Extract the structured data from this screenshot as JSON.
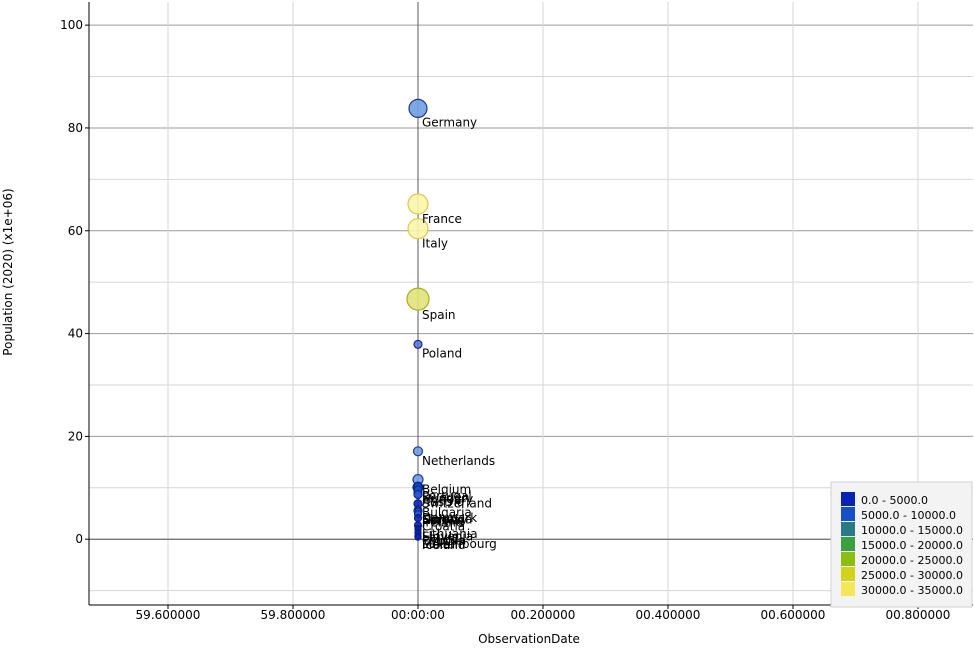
{
  "chart_data": {
    "type": "scatter",
    "title": "",
    "xlabel": "ObservationDate",
    "ylabel": "Population (2020) (x1e+06)",
    "x_tick_labels": [
      "59.600000",
      "59.800000",
      "00:00:00",
      "00.200000",
      "00.400000",
      "00.600000",
      "00.800000"
    ],
    "y_ticks": [
      0,
      20,
      40,
      60,
      80,
      100
    ],
    "ylim": [
      -12.8,
      104.5
    ],
    "grid": true,
    "legend_position": "bottom-right",
    "legend": [
      {
        "label": "0.0 - 5000.0",
        "color": "#0a23b4"
      },
      {
        "label": "5000.0 - 10000.0",
        "color": "#1450c8"
      },
      {
        "label": "10000.0 - 15000.0",
        "color": "#2a7a8a"
      },
      {
        "label": "15000.0 - 20000.0",
        "color": "#3aa040"
      },
      {
        "label": "20000.0 - 25000.0",
        "color": "#8cbe14"
      },
      {
        "label": "25000.0 - 30000.0",
        "color": "#d2d21e"
      },
      {
        "label": "30000.0 - 35000.0",
        "color": "#f5e65a"
      }
    ],
    "points": [
      {
        "label": "Germany",
        "y": 83.8,
        "size": 9,
        "fill": "#6f9fe0",
        "stroke": "#1f3a8a"
      },
      {
        "label": "France",
        "y": 65.2,
        "size": 10,
        "fill": "#fbf5a8",
        "stroke": "#d8cc4a"
      },
      {
        "label": "Italy",
        "y": 60.4,
        "size": 10,
        "fill": "#fbf5a8",
        "stroke": "#d8cc4a"
      },
      {
        "label": "Spain",
        "y": 46.7,
        "size": 11,
        "fill": "#e0e27a",
        "stroke": "#aaae1e"
      },
      {
        "label": "Poland",
        "y": 37.9,
        "size": 4,
        "fill": "#5878d8",
        "stroke": "#1a2a90"
      },
      {
        "label": "Netherlands",
        "y": 17.1,
        "size": 4.5,
        "fill": "#6f9fe0",
        "stroke": "#1f3a8a"
      },
      {
        "label": "Belgium",
        "y": 11.6,
        "size": 5,
        "fill": "#6f9fe0",
        "stroke": "#1f3a8a"
      },
      {
        "label": "Sweden",
        "y": 10.1,
        "size": 5,
        "fill": "#1450c8",
        "stroke": "#0a2a90"
      },
      {
        "label": "Portugal",
        "y": 10.2,
        "size": 4,
        "fill": "#1450c8",
        "stroke": "#0a2a90"
      },
      {
        "label": "Austria",
        "y": 9.0,
        "size": 4,
        "fill": "#2a5ad0",
        "stroke": "#0a2a90"
      },
      {
        "label": "Hungary",
        "y": 9.6,
        "size": 4,
        "fill": "#1450c8",
        "stroke": "#0a2a90"
      },
      {
        "label": "Switzerland",
        "y": 8.7,
        "size": 4,
        "fill": "#2a5ad0",
        "stroke": "#0a2a90"
      },
      {
        "label": "Bulgaria",
        "y": 6.9,
        "size": 4,
        "fill": "#0a23b4",
        "stroke": "#0a1a80"
      },
      {
        "label": "Serbia",
        "y": 5.5,
        "size": 4,
        "fill": "#0a23b4",
        "stroke": "#0a1a80"
      },
      {
        "label": "Denmark",
        "y": 5.8,
        "size": 3.5,
        "fill": "#2a5ad0",
        "stroke": "#0a2a90"
      },
      {
        "label": "Finland",
        "y": 5.5,
        "size": 3.5,
        "fill": "#2a5ad0",
        "stroke": "#0a2a90"
      },
      {
        "label": "Slovakia",
        "y": 5.5,
        "size": 3.5,
        "fill": "#0a23b4",
        "stroke": "#0a1a80"
      },
      {
        "label": "Norway",
        "y": 5.4,
        "size": 3.5,
        "fill": "#2a5ad0",
        "stroke": "#0a2a90"
      },
      {
        "label": "Ireland",
        "y": 4.9,
        "size": 3.5,
        "fill": "#2a5ad0",
        "stroke": "#0a2a90"
      },
      {
        "label": "Croatia",
        "y": 4.1,
        "size": 3.5,
        "fill": "#0a23b4",
        "stroke": "#0a1a80"
      },
      {
        "label": "Lithuania",
        "y": 2.7,
        "size": 3.5,
        "fill": "#0a23b4",
        "stroke": "#0a1a80"
      },
      {
        "label": "Slovenia",
        "y": 2.1,
        "size": 3,
        "fill": "#0a23b4",
        "stroke": "#0a1a80"
      },
      {
        "label": "Latvia",
        "y": 1.9,
        "size": 3,
        "fill": "#0a23b4",
        "stroke": "#0a1a80"
      },
      {
        "label": "Estonia",
        "y": 1.3,
        "size": 3,
        "fill": "#0a23b4",
        "stroke": "#0a1a80"
      },
      {
        "label": "Cyprus",
        "y": 1.2,
        "size": 3,
        "fill": "#0a23b4",
        "stroke": "#0a1a80"
      },
      {
        "label": "Luxembourg",
        "y": 0.6,
        "size": 3,
        "fill": "#2a5ad0",
        "stroke": "#0a2a90"
      },
      {
        "label": "Malta",
        "y": 0.5,
        "size": 3,
        "fill": "#0a23b4",
        "stroke": "#0a1a80"
      },
      {
        "label": "Iceland",
        "y": 0.4,
        "size": 3,
        "fill": "#0a23b4",
        "stroke": "#0a1a80"
      }
    ]
  }
}
